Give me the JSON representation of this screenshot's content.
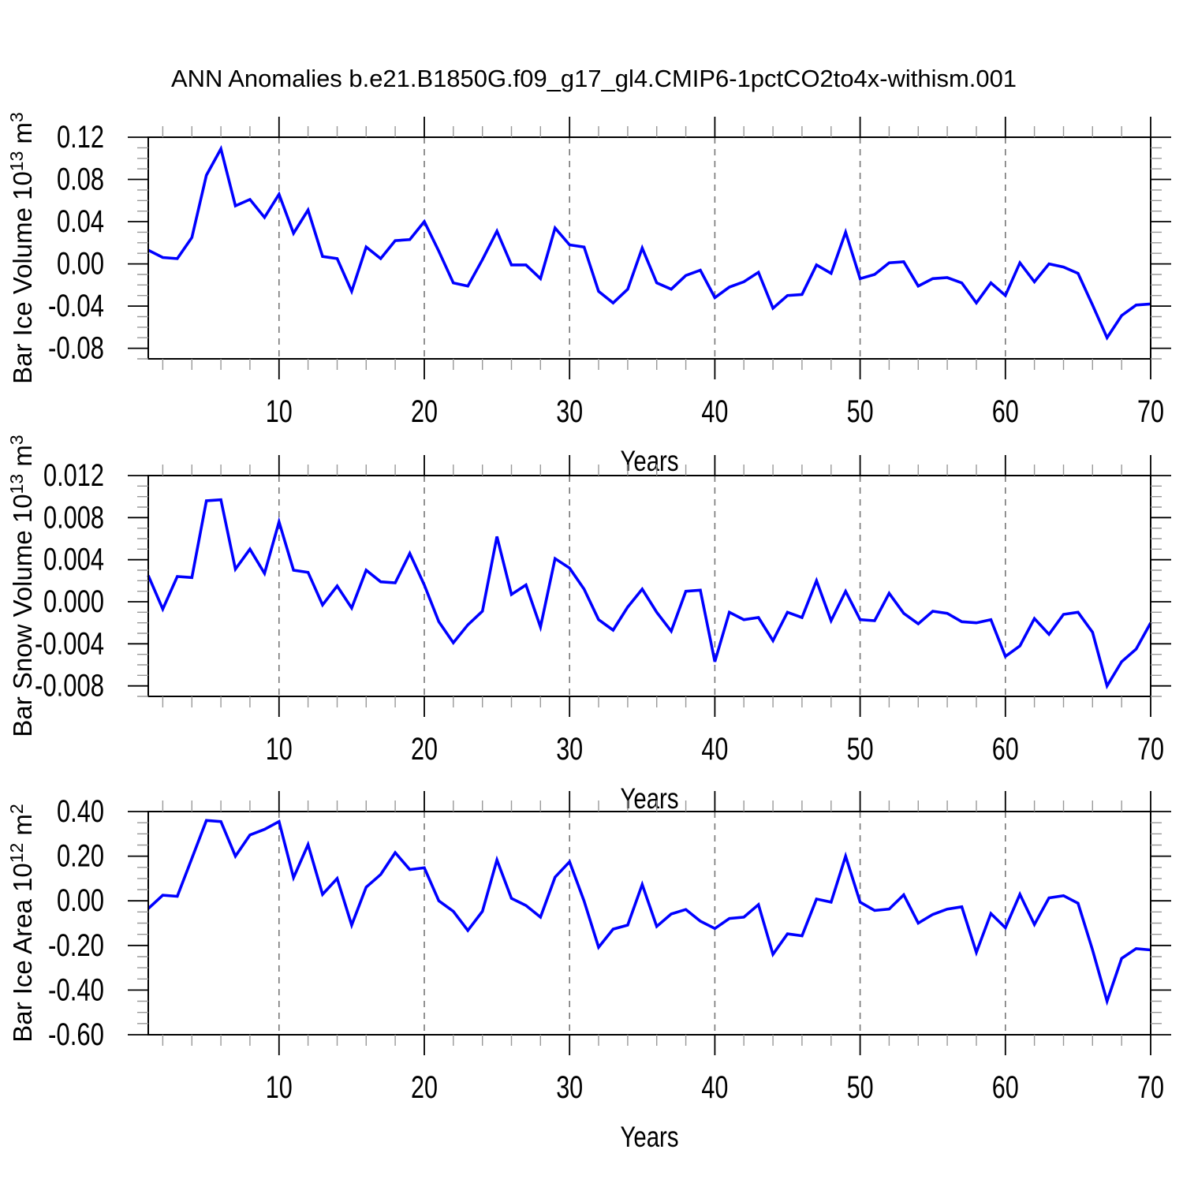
{
  "title": "ANN Anomalies b.e21.B1850G.f09_g17_gl4.CMIP6-1pctCO2to4x-withism.001",
  "figure": {
    "background": "#ffffff",
    "line_color": "#0000ff",
    "grid_color": "#777777",
    "axis_color": "#000000",
    "minor_tick_color": "#999999"
  },
  "x_axis": {
    "label": "Years",
    "xlim": [
      1,
      70
    ],
    "major_ticks": [
      10,
      20,
      30,
      40,
      50,
      60,
      70
    ],
    "major_tick_labels": [
      "10",
      "20",
      "30",
      "40",
      "50",
      "60",
      "70"
    ],
    "minor_step": 2,
    "grid_x": [
      10,
      20,
      30,
      40,
      50,
      60
    ],
    "grid_style": "dashed"
  },
  "chart_data": [
    {
      "type": "line",
      "name": "bar-ice-volume",
      "ylabel": "Bar Ice Volume 10^13 m^3",
      "ylabel_parts": [
        {
          "t": "Bar Ice Volume 10"
        },
        {
          "t": "13",
          "sup": true
        },
        {
          "t": " m"
        },
        {
          "t": "3",
          "sup": true
        }
      ],
      "ylim": [
        -0.09,
        0.12
      ],
      "y_major_ticks": [
        0.12,
        0.08,
        0.04,
        0.0,
        -0.04,
        -0.08
      ],
      "y_tick_labels": [
        "0.12",
        "0.08",
        "0.04",
        "0.00",
        "-0.04",
        "-0.08"
      ],
      "y_minor_step": 0.01,
      "x_start": 1,
      "values": [
        0.013,
        0.006,
        0.005,
        0.025,
        0.084,
        0.109,
        0.055,
        0.061,
        0.044,
        0.066,
        0.029,
        0.051,
        0.007,
        0.005,
        -0.026,
        0.016,
        0.005,
        0.022,
        0.023,
        0.04,
        0.012,
        -0.018,
        -0.021,
        0.004,
        0.031,
        -0.001,
        -0.001,
        -0.014,
        0.034,
        0.018,
        0.016,
        -0.026,
        -0.037,
        -0.024,
        0.015,
        -0.018,
        -0.024,
        -0.011,
        -0.006,
        -0.032,
        -0.022,
        -0.017,
        -0.008,
        -0.042,
        -0.03,
        -0.029,
        -0.001,
        -0.009,
        0.03,
        -0.014,
        -0.01,
        0.001,
        0.002,
        -0.021,
        -0.014,
        -0.013,
        -0.018,
        -0.037,
        -0.018,
        -0.03,
        0.001,
        -0.017,
        0.0,
        -0.003,
        -0.009,
        -0.039,
        -0.07,
        -0.049,
        -0.039,
        -0.038
      ]
    },
    {
      "type": "line",
      "name": "bar-snow-volume",
      "ylabel": "Bar Snow Volume 10^13 m^3",
      "ylabel_parts": [
        {
          "t": "Bar Snow Volume 10"
        },
        {
          "t": "13",
          "sup": true
        },
        {
          "t": " m"
        },
        {
          "t": "3",
          "sup": true
        }
      ],
      "ylim": [
        -0.009,
        0.012
      ],
      "y_major_ticks": [
        0.012,
        0.008,
        0.004,
        0.0,
        -0.004,
        -0.008
      ],
      "y_tick_labels": [
        "0.012",
        "0.008",
        "0.004",
        "0.000",
        "-0.004",
        "-0.008"
      ],
      "y_minor_step": 0.001,
      "x_start": 1,
      "values": [
        0.0025,
        -0.0007,
        0.0024,
        0.0023,
        0.0096,
        0.0097,
        0.0031,
        0.005,
        0.0027,
        0.0076,
        0.003,
        0.0028,
        -0.0003,
        0.0015,
        -0.0006,
        0.003,
        0.0019,
        0.0018,
        0.0046,
        0.0016,
        -0.0019,
        -0.0039,
        -0.0022,
        -0.0009,
        0.0062,
        0.0007,
        0.0016,
        -0.0024,
        0.0041,
        0.0032,
        0.0012,
        -0.0017,
        -0.0027,
        -0.0005,
        0.0012,
        -0.001,
        -0.0028,
        0.001,
        0.0011,
        -0.0057,
        -0.001,
        -0.0017,
        -0.0015,
        -0.0037,
        -0.001,
        -0.0015,
        0.002,
        -0.0018,
        0.001,
        -0.0017,
        -0.0018,
        0.0008,
        -0.0011,
        -0.0021,
        -0.0009,
        -0.0011,
        -0.0019,
        -0.002,
        -0.0017,
        -0.0052,
        -0.0042,
        -0.0016,
        -0.0031,
        -0.0012,
        -0.001,
        -0.0029,
        -0.008,
        -0.0057,
        -0.0045,
        -0.002
      ]
    },
    {
      "type": "line",
      "name": "bar-ice-area",
      "ylabel": "Bar Ice Area 10^12 m^2",
      "ylabel_parts": [
        {
          "t": "Bar Ice Area 10"
        },
        {
          "t": "12",
          "sup": true
        },
        {
          "t": " m"
        },
        {
          "t": "2",
          "sup": true
        }
      ],
      "ylim": [
        -0.6,
        0.4
      ],
      "y_major_ticks": [
        0.4,
        0.2,
        0.0,
        -0.2,
        -0.4,
        -0.6
      ],
      "y_tick_labels": [
        "0.40",
        "0.20",
        "0.00",
        "-0.20",
        "-0.40",
        "-0.60"
      ],
      "y_minor_step": 0.05,
      "x_start": 1,
      "values": [
        -0.035,
        0.025,
        0.02,
        0.19,
        0.36,
        0.355,
        0.2,
        0.295,
        0.32,
        0.355,
        0.104,
        0.252,
        0.029,
        0.1,
        -0.109,
        0.061,
        0.118,
        0.216,
        0.14,
        0.148,
        0.0,
        -0.047,
        -0.133,
        -0.047,
        0.183,
        0.011,
        -0.021,
        -0.073,
        0.106,
        0.175,
        -0.001,
        -0.208,
        -0.127,
        -0.109,
        0.073,
        -0.115,
        -0.059,
        -0.039,
        -0.091,
        -0.124,
        -0.079,
        -0.073,
        -0.017,
        -0.24,
        -0.148,
        -0.157,
        0.008,
        -0.006,
        0.2,
        -0.006,
        -0.043,
        -0.037,
        0.027,
        -0.1,
        -0.061,
        -0.037,
        -0.027,
        -0.231,
        -0.057,
        -0.121,
        0.029,
        -0.106,
        0.013,
        0.023,
        -0.011,
        -0.22,
        -0.45,
        -0.258,
        -0.214,
        -0.22
      ]
    }
  ]
}
